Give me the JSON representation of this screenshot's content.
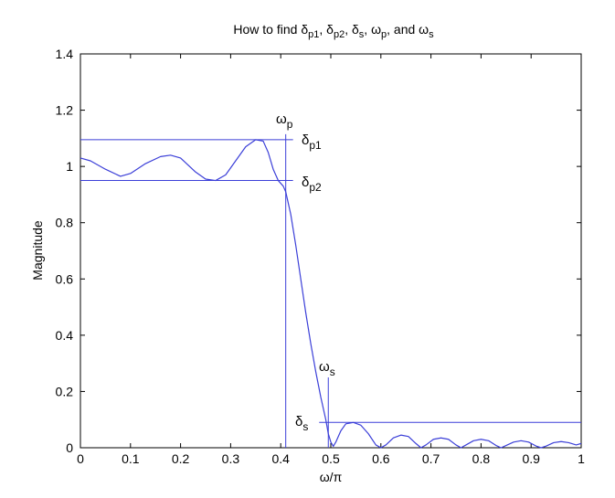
{
  "chart_data": {
    "type": "line",
    "title": "How to find δp1, δp2, δs, ωp, and ωs",
    "title_parts": {
      "lead": "How to find ",
      "d1": "δ",
      "d1s": "p1",
      "sep1": ", ",
      "d2": "δ",
      "d2s": "p2",
      "sep2": ", ",
      "d3": "δ",
      "d3s": "s",
      "sep3": ", ",
      "w1": "ω",
      "w1s": "p",
      "sep4": ", and ",
      "w2": "ω",
      "w2s": "s"
    },
    "xlabel": "ω/π",
    "ylabel": "Magnitude",
    "xlim": [
      0,
      1
    ],
    "ylim": [
      0,
      1.4
    ],
    "xticks": [
      "0",
      "0.1",
      "0.2",
      "0.3",
      "0.4",
      "0.5",
      "0.6",
      "0.7",
      "0.8",
      "0.9",
      "1"
    ],
    "yticks": [
      "0",
      "0.2",
      "0.4",
      "0.6",
      "0.8",
      "1",
      "1.2",
      "1.4"
    ],
    "grid": false,
    "line_color": "#3b3fd8",
    "series": [
      {
        "x": [
          0,
          0.02,
          0.05,
          0.08,
          0.1,
          0.13,
          0.16,
          0.18,
          0.2,
          0.23,
          0.25,
          0.27,
          0.29,
          0.31,
          0.33,
          0.35,
          0.365,
          0.375,
          0.385,
          0.395,
          0.405,
          0.41,
          0.42,
          0.43,
          0.44,
          0.45,
          0.46,
          0.47,
          0.48,
          0.49,
          0.495,
          0.5,
          0.505,
          0.51,
          0.52,
          0.53,
          0.545,
          0.56,
          0.575,
          0.59,
          0.6,
          0.61,
          0.625,
          0.64,
          0.655,
          0.67,
          0.68,
          0.69,
          0.705,
          0.72,
          0.735,
          0.75,
          0.76,
          0.77,
          0.785,
          0.8,
          0.815,
          0.83,
          0.84,
          0.85,
          0.865,
          0.88,
          0.895,
          0.91,
          0.92,
          0.93,
          0.945,
          0.96,
          0.975,
          0.99,
          1.0
        ],
        "y": [
          1.03,
          1.02,
          0.99,
          0.965,
          0.975,
          1.01,
          1.035,
          1.04,
          1.03,
          0.98,
          0.955,
          0.95,
          0.97,
          1.02,
          1.07,
          1.095,
          1.09,
          1.05,
          0.99,
          0.95,
          0.93,
          0.91,
          0.83,
          0.72,
          0.6,
          0.48,
          0.37,
          0.27,
          0.18,
          0.1,
          0.05,
          0.02,
          0.005,
          0.02,
          0.06,
          0.085,
          0.09,
          0.08,
          0.05,
          0.01,
          0.0,
          0.01,
          0.035,
          0.045,
          0.04,
          0.015,
          0.0,
          0.01,
          0.03,
          0.035,
          0.03,
          0.01,
          0.0,
          0.01,
          0.025,
          0.03,
          0.025,
          0.008,
          0.0,
          0.008,
          0.02,
          0.025,
          0.02,
          0.006,
          0.0,
          0.006,
          0.018,
          0.022,
          0.018,
          0.01,
          0.015
        ]
      }
    ],
    "reference_lines": {
      "dp1": 1.095,
      "dp2": 0.95,
      "ds": 0.09,
      "wp": 0.41,
      "ws": 0.495,
      "ws_top": 0.25,
      "dp1_x_end": 0.41,
      "dp2_x_end": 0.41,
      "ds_x_start": 0.495
    },
    "annotations": {
      "wp": {
        "sym": "ω",
        "sub": "p"
      },
      "dp1": {
        "sym": "δ",
        "sub": "p1"
      },
      "dp2": {
        "sym": "δ",
        "sub": "p2"
      },
      "ws": {
        "sym": "ω",
        "sub": "s"
      },
      "ds": {
        "sym": "δ",
        "sub": "s"
      }
    }
  }
}
